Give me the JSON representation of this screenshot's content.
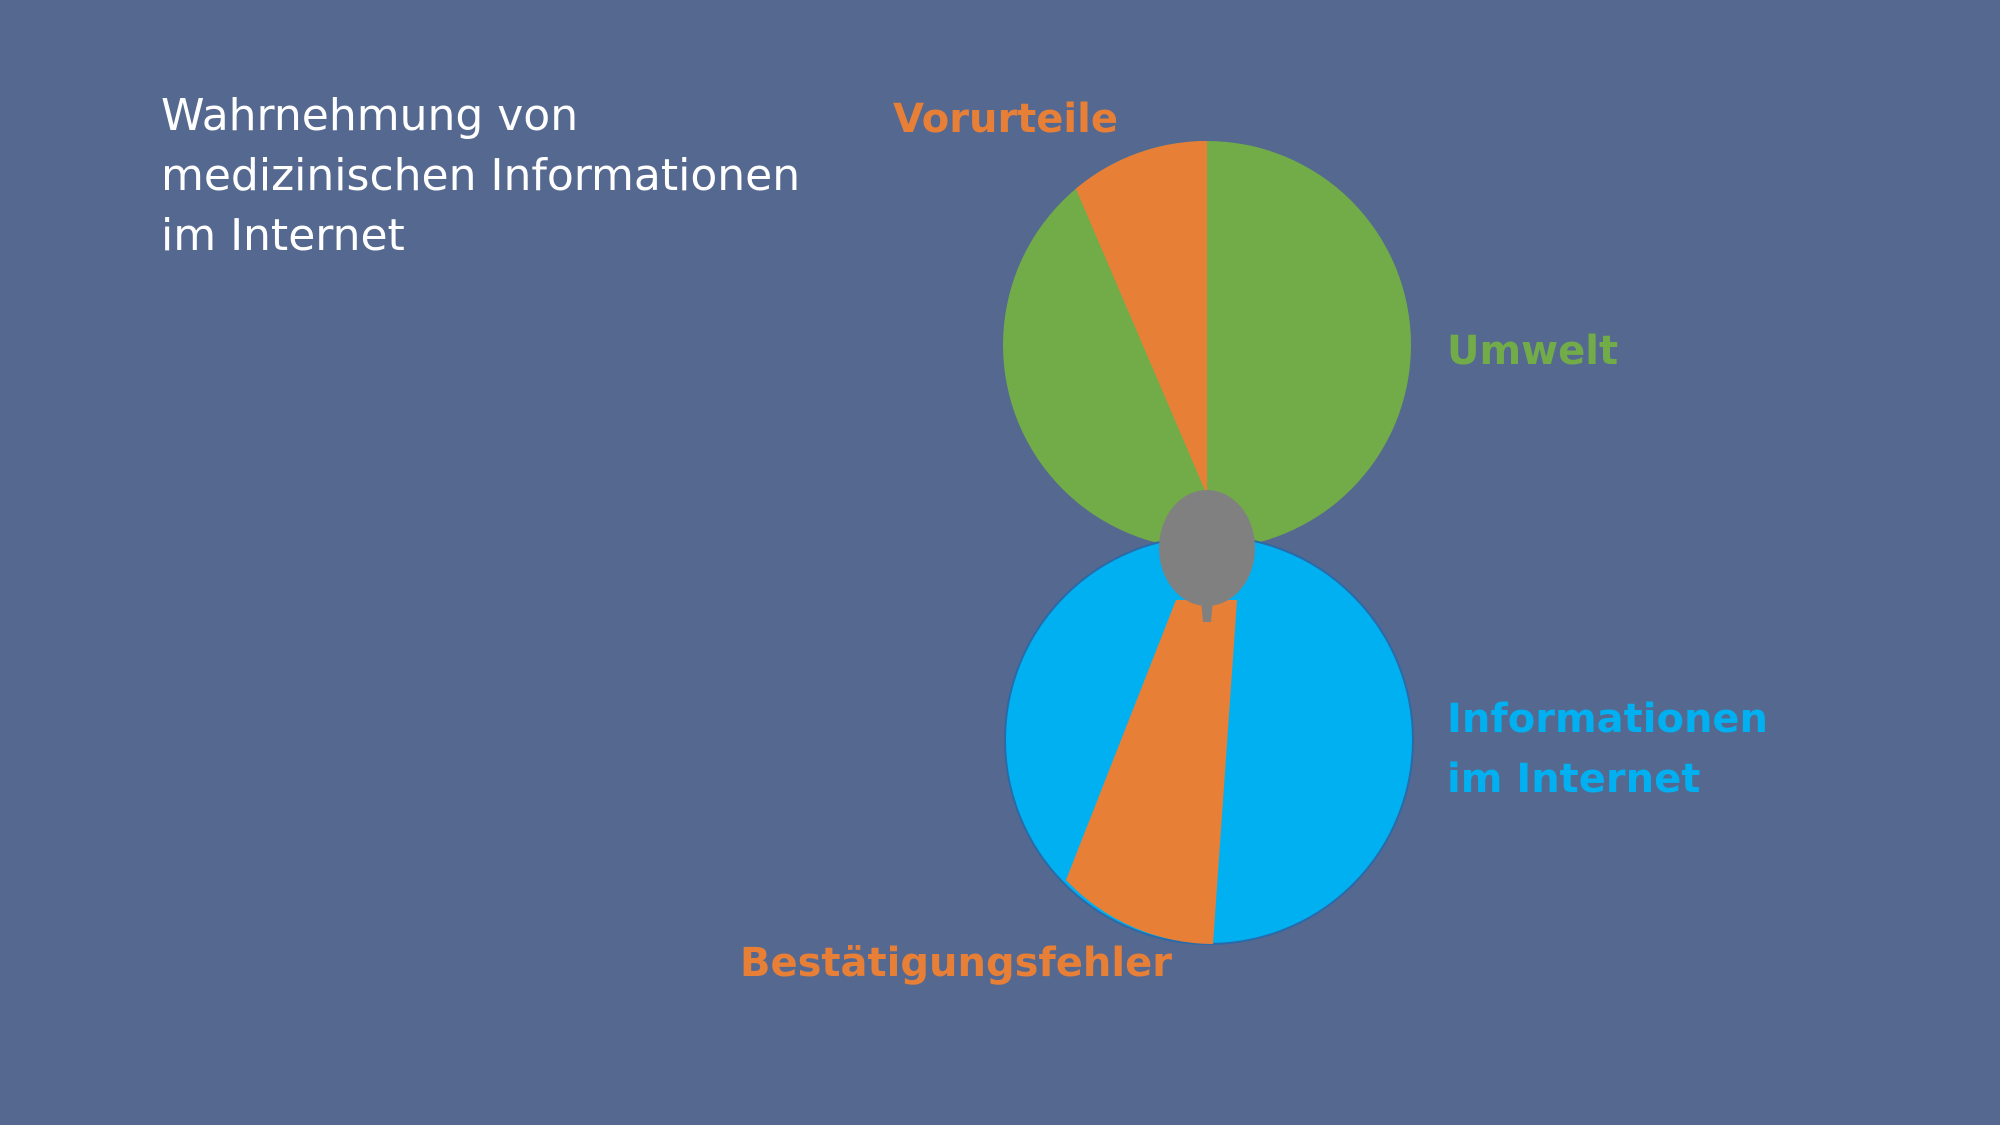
{
  "title": {
    "lines": [
      "Wahrnehmung von",
      "medizinischen Informationen",
      "im Internet"
    ]
  },
  "colors": {
    "background": "#55688f",
    "green": "#71ac48",
    "orange": "#e87f37",
    "blue": "#00b0f0",
    "gray": "#808080"
  },
  "labels": {
    "vorurteile": "Vorurteile",
    "umwelt": "Umwelt",
    "informationen": [
      "Informationen",
      "im Internet"
    ],
    "bestaetigungsfehler": "Bestätigungsfehler"
  },
  "icons": {
    "connector": "balloon-knot-icon"
  }
}
